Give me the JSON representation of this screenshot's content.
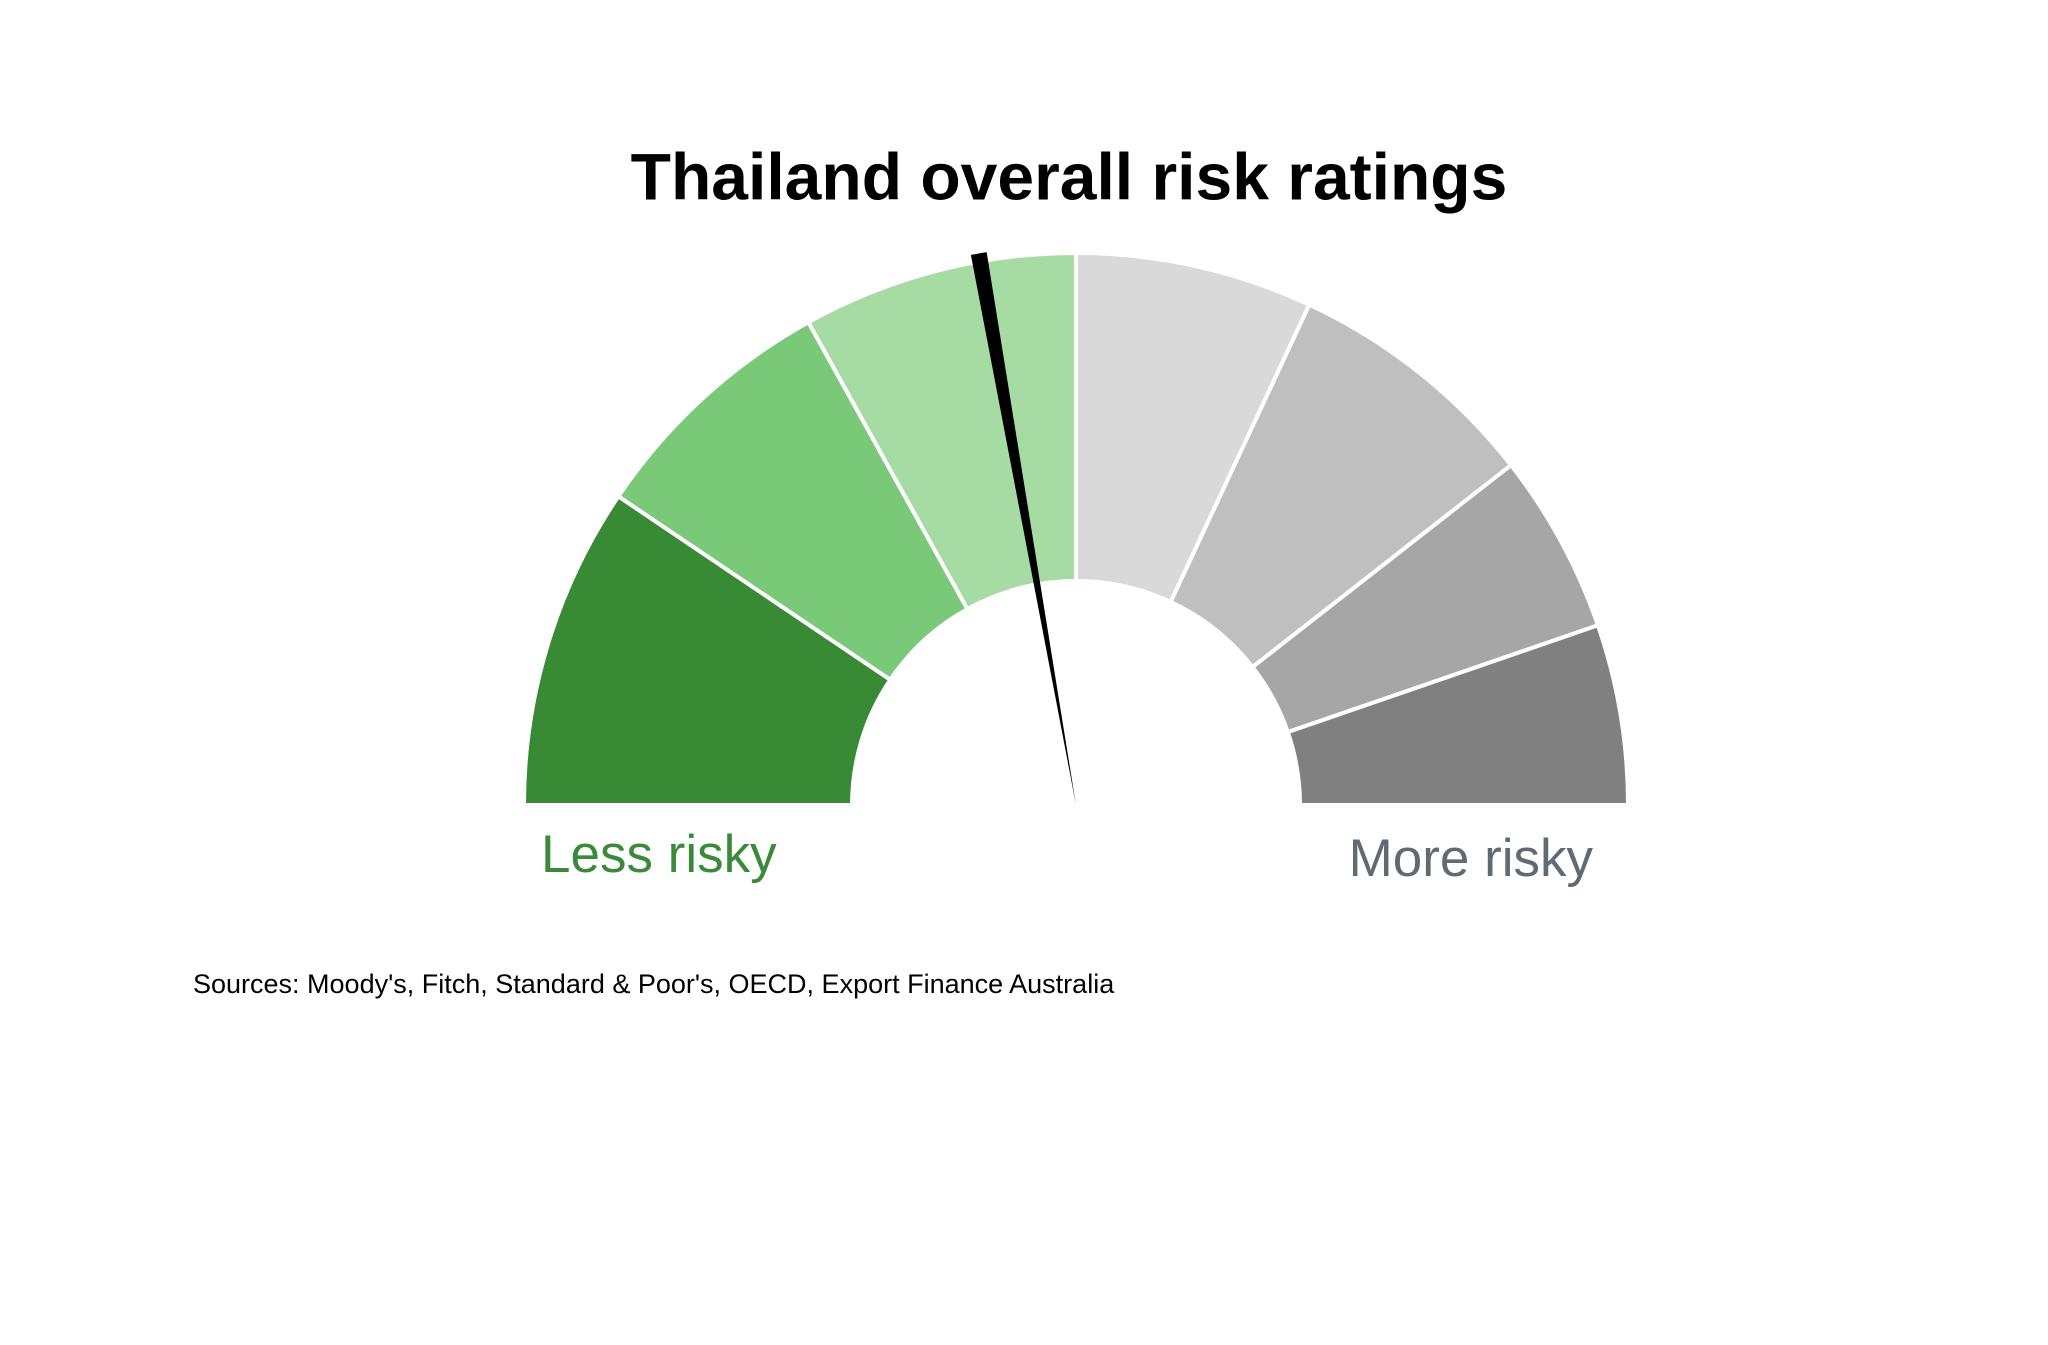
{
  "chart_data": {
    "type": "gauge",
    "title": "Thailand overall risk ratings",
    "range": [
      0,
      180
    ],
    "values": [
      34,
      27,
      29,
      25,
      27,
      19,
      19
    ],
    "colors": [
      "#388a35",
      "#79c979",
      "#a6dba4",
      "#d9d9d9",
      "#bfbfbf",
      "#a6a6a6",
      "#808080"
    ],
    "needle": 80,
    "needle_color": "#000000",
    "min_label": "Less risky",
    "min_label_color": "#3a8a3a",
    "max_label": "More risky",
    "max_label_color": "#5f6b73",
    "source": "Sources: Moody's, Fitch, Standard & Poor's, OECD, Export Finance Australia"
  }
}
